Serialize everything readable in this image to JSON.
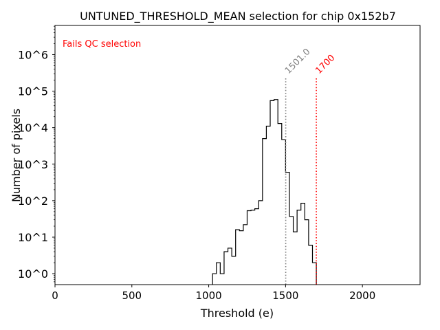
{
  "chart_data": {
    "type": "histogram",
    "title": "UNTUNED_THRESHOLD_MEAN selection for chip 0x152b7",
    "xlabel": "Threshold (e)",
    "ylabel": "Number of pixels",
    "xlim": [
      0,
      2375
    ],
    "ylim_log10": [
      -0.3,
      6.8
    ],
    "yscale": "log",
    "x_ticks": [
      0,
      500,
      1000,
      1500,
      2000
    ],
    "x_tick_labels": [
      "0",
      "500",
      "1000",
      "1500",
      "2000"
    ],
    "y_ticks_log10": [
      0,
      1,
      2,
      3,
      4,
      5,
      6
    ],
    "y_tick_labels": [
      "10^0",
      "10^1",
      "10^2",
      "10^3",
      "10^4",
      "10^5",
      "10^6"
    ],
    "bin_width": 25,
    "bin_start": 1025,
    "counts": [
      1,
      2,
      1,
      4,
      5,
      3,
      16,
      15,
      22,
      53,
      55,
      60,
      100,
      5000,
      11000,
      55000,
      59000,
      13000,
      4700,
      600,
      37,
      14,
      55,
      85,
      30,
      6,
      2
    ],
    "annotation": {
      "text": "Fails QC selection",
      "color": "#ff0000"
    },
    "vlines": [
      {
        "label": "mean",
        "x": 1501.0,
        "text": "1501.0",
        "color": "#808080"
      },
      {
        "label": "cut",
        "x": 1700,
        "text": "1700",
        "color": "#ff0000"
      }
    ],
    "vline_top_log10": 5.35,
    "line_color": "#000000"
  }
}
